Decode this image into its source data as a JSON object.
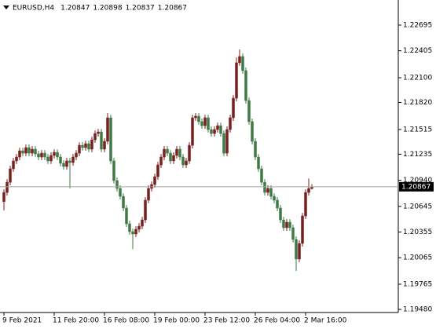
{
  "chart_data": {
    "type": "candlestick",
    "title": "EURUSD,H4",
    "up_color": "#7a1f1f",
    "down_color": "#3f7a45",
    "price_line_color": "#a0a8a0",
    "ylim": [
      1.19445,
      1.22979
    ],
    "xlim": [
      -1.25,
      125.5
    ],
    "yticks": [
      1.22695,
      1.22405,
      {
        "value": 1.221,
        "label": "1.22100"
      },
      {
        "value": 1.2182,
        "label": "1.21820"
      },
      1.21515,
      1.21235,
      {
        "value": 1.2094,
        "label": "1.20940"
      },
      1.20645,
      1.20355,
      1.20065,
      1.19765,
      {
        "value": 1.1948,
        "label": "1.19480"
      }
    ],
    "xticks": [
      {
        "value": 0,
        "label": "9 Feb 2021"
      },
      {
        "value": 16,
        "label": "11 Feb 20:00"
      },
      {
        "value": 32,
        "label": "16 Feb 08:00"
      },
      {
        "value": 48,
        "label": "19 Feb 00:00"
      },
      {
        "value": 64,
        "label": "23 Feb 12:00"
      },
      {
        "value": 80,
        "label": "26 Feb 04:00"
      },
      {
        "value": 96,
        "label": "2 Mar 16:00"
      }
    ],
    "open": [
      1.207,
      1.20803,
      1.20918,
      1.2107,
      1.21159,
      1.21203,
      1.21274,
      1.21247,
      1.2131,
      1.21247,
      1.21292,
      1.21239,
      1.21203,
      1.21247,
      1.21203,
      1.21159,
      1.21221,
      1.21256,
      1.21203,
      1.21132,
      1.21096,
      1.21159,
      1.21141,
      1.21203,
      1.21247,
      1.21336,
      1.2131,
      1.21354,
      1.21292,
      1.21398,
      1.21469,
      1.21487,
      1.21292,
      1.21381,
      1.21647,
      1.21159,
      1.20937,
      1.20848,
      1.20759,
      1.20626,
      1.20448,
      1.20359,
      1.20333,
      1.20386,
      1.20421,
      1.20492,
      1.20715,
      1.20848,
      1.20892,
      1.20981,
      1.21114,
      1.21203,
      1.21292,
      1.21247,
      1.21159,
      1.21221,
      1.21292,
      1.21203,
      1.21114,
      1.21159,
      1.21336,
      1.21647,
      1.21665,
      1.21603,
      1.21558,
      1.21647,
      1.21514,
      1.21469,
      1.21514,
      1.21558,
      1.21469,
      1.21247,
      1.21514,
      1.21647,
      1.21869,
      1.22269,
      1.2234,
      1.2218,
      1.21842,
      1.21603,
      1.21381,
      1.21203,
      1.2107,
      1.20918,
      1.20803,
      1.20848,
      1.20759,
      1.20715,
      1.20626,
      1.20492,
      1.20404,
      1.20466,
      1.20404,
      1.20271,
      1.20049,
      1.20226,
      1.20537,
      1.20803,
      1.20847
    ],
    "high": [
      1.20838,
      1.20953,
      1.21105,
      1.21194,
      1.21238,
      1.21309,
      1.21309,
      1.21345,
      1.21345,
      1.21327,
      1.21327,
      1.21274,
      1.21282,
      1.21282,
      1.21238,
      1.21256,
      1.21291,
      1.21291,
      1.21238,
      1.21167,
      1.21194,
      1.21194,
      1.21238,
      1.21282,
      1.21371,
      1.21371,
      1.21389,
      1.21389,
      1.21433,
      1.21504,
      1.21522,
      1.21522,
      1.21416,
      1.217,
      1.21682,
      1.21194,
      1.20972,
      1.20883,
      1.20794,
      1.20661,
      1.20483,
      1.20394,
      1.20421,
      1.20456,
      1.20527,
      1.2075,
      1.20883,
      1.20927,
      1.21016,
      1.21149,
      1.21238,
      1.21327,
      1.21327,
      1.21282,
      1.21256,
      1.21327,
      1.21327,
      1.21238,
      1.21194,
      1.21371,
      1.21682,
      1.217,
      1.217,
      1.21638,
      1.21682,
      1.21682,
      1.21549,
      1.21549,
      1.21593,
      1.21593,
      1.21504,
      1.21549,
      1.21682,
      1.21904,
      1.2233,
      1.2242,
      1.22375,
      1.22215,
      1.21877,
      1.21638,
      1.21416,
      1.21238,
      1.21105,
      1.20953,
      1.20883,
      1.20883,
      1.20794,
      1.2075,
      1.20661,
      1.20527,
      1.20501,
      1.20501,
      1.20439,
      1.20306,
      1.20261,
      1.20572,
      1.20838,
      1.2096,
      1.20898
    ],
    "low": [
      1.206,
      1.20768,
      1.20883,
      1.21035,
      1.21124,
      1.21168,
      1.21212,
      1.21212,
      1.21212,
      1.21212,
      1.21204,
      1.21168,
      1.21168,
      1.21168,
      1.21124,
      1.21124,
      1.21186,
      1.21168,
      1.21097,
      1.21061,
      1.21061,
      1.20848,
      1.21106,
      1.21168,
      1.21212,
      1.21275,
      1.21275,
      1.21257,
      1.21257,
      1.21363,
      1.21434,
      1.21257,
      1.21257,
      1.21346,
      1.21124,
      1.20902,
      1.20813,
      1.20724,
      1.20591,
      1.20413,
      1.20324,
      1.2016,
      1.20298,
      1.20351,
      1.20386,
      1.20457,
      1.2068,
      1.20813,
      1.20857,
      1.20946,
      1.21079,
      1.21168,
      1.21212,
      1.21124,
      1.21124,
      1.21186,
      1.21168,
      1.21079,
      1.21079,
      1.21124,
      1.21301,
      1.21612,
      1.21568,
      1.21523,
      1.21523,
      1.21479,
      1.21434,
      1.21434,
      1.21479,
      1.21434,
      1.21212,
      1.21212,
      1.21479,
      1.21612,
      1.21834,
      1.22234,
      1.22145,
      1.21807,
      1.21568,
      1.21346,
      1.21168,
      1.21035,
      1.20883,
      1.20768,
      1.20768,
      1.20724,
      1.2068,
      1.20591,
      1.20457,
      1.20369,
      1.20369,
      1.20369,
      1.20236,
      1.19915,
      1.20014,
      1.20191,
      1.20502,
      1.20768,
      1.20837
    ],
    "close": [
      1.20803,
      1.20918,
      1.2107,
      1.21159,
      1.21203,
      1.21274,
      1.21247,
      1.2131,
      1.21247,
      1.21292,
      1.21239,
      1.21203,
      1.21247,
      1.21203,
      1.21159,
      1.21221,
      1.21256,
      1.21203,
      1.21132,
      1.21096,
      1.21159,
      1.21141,
      1.21203,
      1.21247,
      1.21336,
      1.2131,
      1.21354,
      1.21292,
      1.21398,
      1.21469,
      1.21487,
      1.21292,
      1.21381,
      1.21647,
      1.21159,
      1.20937,
      1.20848,
      1.20759,
      1.20626,
      1.20448,
      1.20359,
      1.20333,
      1.20386,
      1.20421,
      1.20492,
      1.20715,
      1.20848,
      1.20892,
      1.20981,
      1.21114,
      1.21203,
      1.21292,
      1.21247,
      1.21159,
      1.21221,
      1.21292,
      1.21203,
      1.21114,
      1.21159,
      1.21336,
      1.21647,
      1.21665,
      1.21603,
      1.21558,
      1.21647,
      1.21514,
      1.21469,
      1.21514,
      1.21558,
      1.21469,
      1.21247,
      1.21514,
      1.21647,
      1.21869,
      1.22269,
      1.2234,
      1.2218,
      1.21842,
      1.21603,
      1.21381,
      1.21203,
      1.2107,
      1.20918,
      1.20803,
      1.20848,
      1.20759,
      1.20715,
      1.20626,
      1.20492,
      1.20404,
      1.20466,
      1.20404,
      1.20271,
      1.20049,
      1.20226,
      1.20537,
      1.20803,
      1.20848,
      1.20867
    ]
  }
}
